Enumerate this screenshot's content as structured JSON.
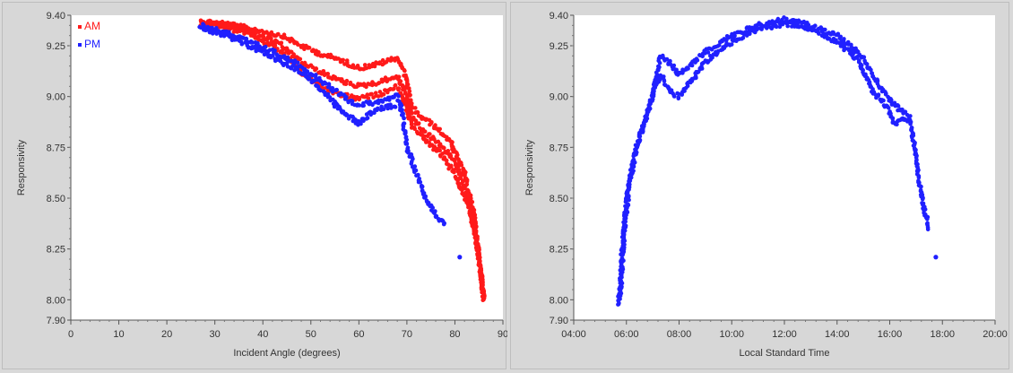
{
  "chart_data": [
    {
      "type": "scatter",
      "xlabel": "Incident Angle (degrees)",
      "ylabel": "Responsivity",
      "xlim": [
        0,
        90
      ],
      "ylim": [
        7.9,
        9.4
      ],
      "xticks": [
        "0",
        "10",
        "20",
        "30",
        "40",
        "50",
        "60",
        "70",
        "80",
        "90"
      ],
      "yticks": [
        "7.90",
        "8.00",
        "8.25",
        "8.50",
        "8.75",
        "9.00",
        "9.25",
        "9.40"
      ],
      "grid": false,
      "legend_position": "top-left",
      "series": [
        {
          "name": "AM",
          "color": "#ff1a1a",
          "bands": [
            [
              [
                27,
                9.37
              ],
              [
                32,
                9.36
              ],
              [
                38,
                9.33
              ],
              [
                44,
                9.3
              ],
              [
                48,
                9.25
              ],
              [
                52,
                9.21
              ],
              [
                56,
                9.18
              ],
              [
                60,
                9.14
              ],
              [
                64,
                9.16
              ],
              [
                68,
                9.19
              ],
              [
                69.5,
                9.12
              ],
              [
                71,
                8.95
              ],
              [
                73,
                8.9
              ],
              [
                76,
                8.85
              ],
              [
                79,
                8.78
              ],
              [
                82,
                8.62
              ],
              [
                84,
                8.42
              ],
              [
                85.5,
                8.1
              ],
              [
                86,
                8.0
              ]
            ],
            [
              [
                27,
                9.36
              ],
              [
                32,
                9.35
              ],
              [
                38,
                9.32
              ],
              [
                44,
                9.25
              ],
              [
                48,
                9.17
              ],
              [
                52,
                9.12
              ],
              [
                56,
                9.08
              ],
              [
                60,
                9.05
              ],
              [
                64,
                9.07
              ],
              [
                68,
                9.1
              ],
              [
                69.5,
                9.03
              ],
              [
                71,
                8.9
              ],
              [
                74,
                8.82
              ],
              [
                77,
                8.76
              ],
              [
                80,
                8.68
              ],
              [
                82.5,
                8.52
              ],
              [
                84.5,
                8.3
              ],
              [
                86,
                8.02
              ]
            ],
            [
              [
                27,
                9.36
              ],
              [
                32,
                9.34
              ],
              [
                38,
                9.3
              ],
              [
                44,
                9.22
              ],
              [
                48,
                9.12
              ],
              [
                52,
                9.05
              ],
              [
                56,
                9.01
              ],
              [
                60,
                8.99
              ],
              [
                64,
                9.01
              ],
              [
                68,
                9.05
              ],
              [
                69.5,
                8.97
              ],
              [
                71,
                8.86
              ],
              [
                74,
                8.78
              ],
              [
                77,
                8.72
              ],
              [
                80,
                8.62
              ],
              [
                83,
                8.45
              ],
              [
                85,
                8.22
              ],
              [
                86,
                8.0
              ]
            ]
          ]
        },
        {
          "name": "PM",
          "color": "#2020ff",
          "bands": [
            [
              [
                27,
                9.35
              ],
              [
                32,
                9.32
              ],
              [
                38,
                9.26
              ],
              [
                44,
                9.2
              ],
              [
                48,
                9.15
              ],
              [
                52,
                9.08
              ],
              [
                55,
                9.03
              ],
              [
                58,
                8.98
              ],
              [
                60,
                8.96
              ],
              [
                63,
                8.97
              ],
              [
                66,
                8.99
              ],
              [
                68,
                9.0
              ],
              [
                69,
                8.92
              ],
              [
                70,
                8.75
              ],
              [
                72,
                8.62
              ],
              [
                74,
                8.5
              ],
              [
                76,
                8.42
              ],
              [
                78,
                8.36
              ]
            ],
            [
              [
                27,
                9.34
              ],
              [
                32,
                9.3
              ],
              [
                38,
                9.24
              ],
              [
                44,
                9.17
              ],
              [
                48,
                9.12
              ],
              [
                52,
                9.04
              ],
              [
                55,
                8.96
              ],
              [
                58,
                8.9
              ],
              [
                60,
                8.87
              ],
              [
                63,
                8.93
              ],
              [
                66,
                8.95
              ],
              [
                68,
                8.96
              ]
            ]
          ],
          "points": [
            [
              81,
              8.21
            ]
          ]
        }
      ]
    },
    {
      "type": "scatter",
      "xlabel": "Local Standard Time",
      "ylabel": "Responsivity",
      "xlim": [
        4,
        20
      ],
      "ylim": [
        7.9,
        9.4
      ],
      "xticks": [
        "04:00",
        "06:00",
        "08:00",
        "10:00",
        "12:00",
        "14:00",
        "16:00",
        "18:00",
        "20:00"
      ],
      "yticks": [
        "7.90",
        "8.00",
        "8.25",
        "8.50",
        "8.75",
        "9.00",
        "9.25",
        "9.40"
      ],
      "grid": false,
      "series": [
        {
          "color": "#2020ff",
          "bands": [
            [
              [
                5.7,
                7.98
              ],
              [
                5.85,
                8.25
              ],
              [
                6.0,
                8.5
              ],
              [
                6.3,
                8.72
              ],
              [
                6.7,
                8.88
              ],
              [
                7.0,
                9.0
              ],
              [
                7.3,
                9.2
              ],
              [
                7.7,
                9.16
              ],
              [
                8.0,
                9.11
              ],
              [
                8.5,
                9.16
              ],
              [
                9.0,
                9.22
              ],
              [
                10.0,
                9.3
              ],
              [
                11.0,
                9.35
              ],
              [
                12.0,
                9.38
              ],
              [
                13.0,
                9.35
              ],
              [
                14.0,
                9.3
              ],
              [
                14.8,
                9.22
              ],
              [
                15.4,
                9.1
              ],
              [
                15.9,
                9.0
              ],
              [
                16.4,
                8.93
              ],
              [
                16.75,
                8.9
              ],
              [
                16.9,
                8.78
              ],
              [
                17.1,
                8.6
              ],
              [
                17.3,
                8.45
              ],
              [
                17.5,
                8.35
              ]
            ],
            [
              [
                5.75,
                8.0
              ],
              [
                5.9,
                8.28
              ],
              [
                6.1,
                8.55
              ],
              [
                6.4,
                8.76
              ],
              [
                6.8,
                8.92
              ],
              [
                7.1,
                9.05
              ],
              [
                7.35,
                9.1
              ],
              [
                7.7,
                9.02
              ],
              [
                8.0,
                9.0
              ],
              [
                8.5,
                9.08
              ],
              [
                9.0,
                9.17
              ],
              [
                10.0,
                9.27
              ],
              [
                11.0,
                9.33
              ],
              [
                12.0,
                9.36
              ],
              [
                13.0,
                9.33
              ],
              [
                14.0,
                9.27
              ],
              [
                14.8,
                9.18
              ],
              [
                15.4,
                9.02
              ],
              [
                15.9,
                8.95
              ],
              [
                16.2,
                8.86
              ],
              [
                16.5,
                8.9
              ],
              [
                16.75,
                8.87
              ]
            ]
          ],
          "points": [
            [
              17.75,
              8.21
            ]
          ]
        }
      ]
    }
  ]
}
